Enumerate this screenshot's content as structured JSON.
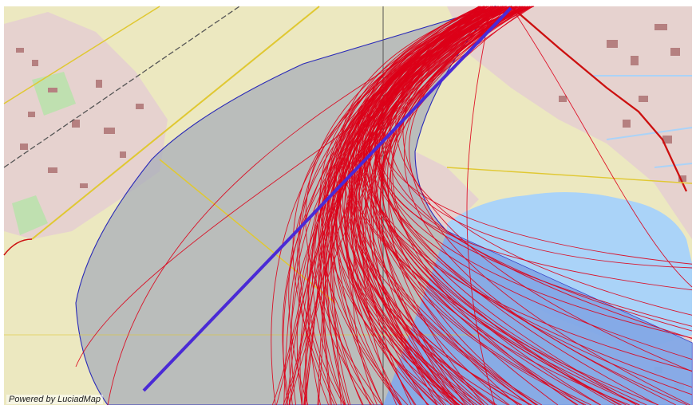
{
  "map": {
    "attribution": "Powered by LuciadMap",
    "colors": {
      "land": "#ece8c0",
      "urban": "#e8d4d0",
      "building": "#b58080",
      "water": "#aad3f8",
      "road_primary": "#e0c832",
      "road_main": "#cc1010",
      "rail": "#555555",
      "zone_fill": "#a6acb8",
      "zone_stroke": "#2a2ab8",
      "water_under_zone": "#7fa8ec",
      "runway": "#4a2ad6",
      "track": "#dd0018"
    },
    "layers": {
      "base": "street-map-icon",
      "zone": "noise-zone-polygon",
      "runway": "runway-line",
      "tracks": "flight-tracks"
    }
  }
}
